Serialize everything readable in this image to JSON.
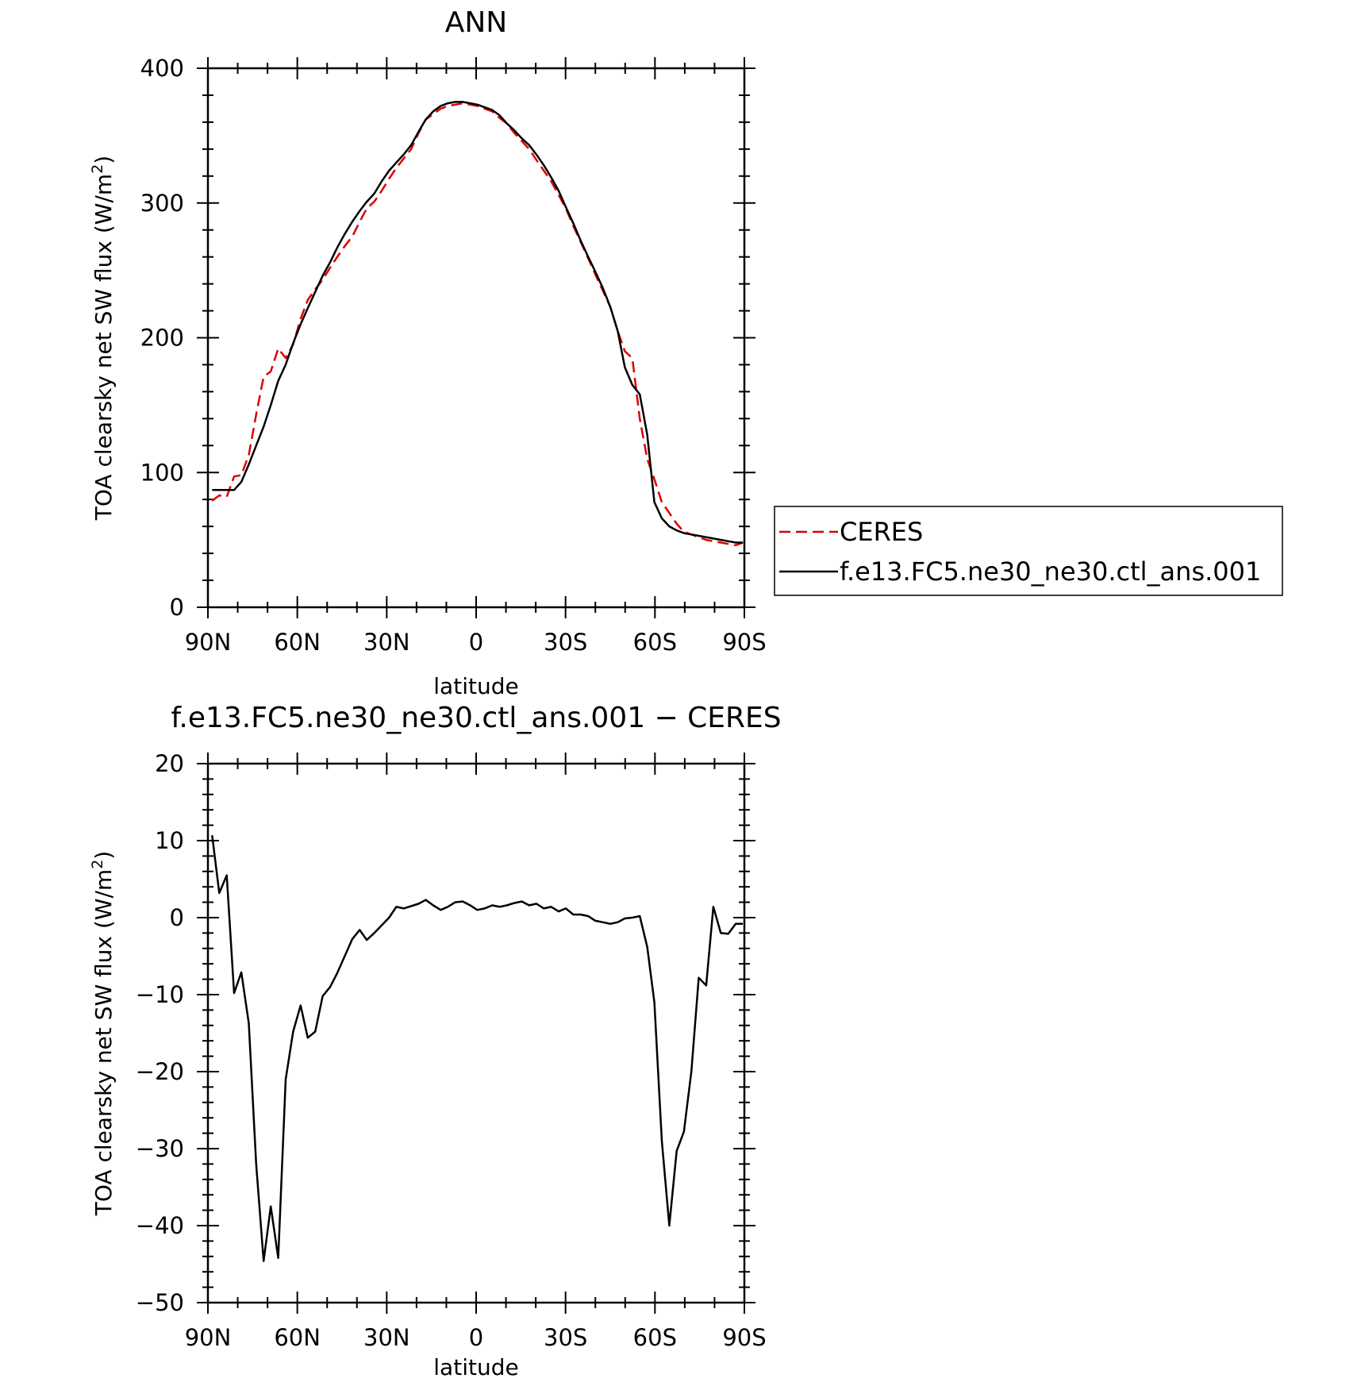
{
  "chart_data": [
    {
      "type": "line",
      "title": "ANN",
      "xlabel": "latitude",
      "ylabel": "TOA clearsky net SW flux (W/m",
      "ylabel_sup": "2",
      "ylabel_tail": ")",
      "xlim": [
        90,
        -90
      ],
      "ylim": [
        0,
        400
      ],
      "xticks": [
        90,
        60,
        30,
        0,
        -30,
        -60,
        -90
      ],
      "xtick_labels": [
        "90N",
        "60N",
        "30N",
        "0",
        "30S",
        "60S",
        "90S"
      ],
      "yticks": [
        0,
        100,
        200,
        300,
        400
      ],
      "ytick_labels": [
        "0",
        "100",
        "200",
        "300",
        "400"
      ],
      "grid": false,
      "legend": "right",
      "series": [
        {
          "name": "CERES",
          "color": "#dd0000",
          "dash": "dashed",
          "x": [
            88.6,
            86.2,
            83.7,
            81.2,
            78.8,
            76.3,
            73.8,
            71.3,
            68.9,
            66.4,
            63.9,
            61.4,
            58.9,
            56.5,
            54.0,
            51.5,
            49.0,
            46.6,
            44.1,
            41.6,
            39.1,
            36.7,
            34.2,
            31.7,
            29.2,
            26.8,
            24.3,
            21.8,
            19.3,
            16.9,
            14.4,
            11.9,
            9.5,
            7.0,
            4.5,
            2.0,
            -0.4,
            -2.9,
            -5.4,
            -7.9,
            -10.3,
            -12.8,
            -15.3,
            -17.8,
            -20.2,
            -22.7,
            -25.2,
            -27.7,
            -30.1,
            -32.6,
            -35.1,
            -37.6,
            -40.0,
            -42.5,
            -45.0,
            -47.5,
            -49.9,
            -52.4,
            -54.9,
            -57.4,
            -59.8,
            -62.3,
            -64.8,
            -67.3,
            -69.7,
            -72.2,
            -74.7,
            -77.2,
            -79.6,
            -82.1,
            -84.6,
            -87.1,
            -89.5
          ],
          "values": [
            79,
            83,
            82,
            97,
            98,
            113,
            143,
            171,
            175,
            192,
            185,
            195,
            214,
            228,
            236,
            243,
            252,
            260,
            268,
            275,
            286,
            296,
            301,
            309,
            318,
            326,
            333,
            340,
            352,
            362,
            366,
            370,
            372,
            373,
            374,
            373,
            372,
            370,
            368,
            363,
            359,
            352,
            346,
            340,
            332,
            324,
            316,
            306,
            296,
            283,
            271,
            259,
            247,
            235,
            223,
            205,
            190,
            185,
            140,
            110,
            95,
            78,
            70,
            62,
            56,
            54,
            52,
            50,
            49,
            48,
            47,
            46,
            48
          ]
        },
        {
          "name": "f.e13.FC5.ne30_ne30.ctl_ans.001",
          "color": "#000000",
          "dash": "solid",
          "x": [
            88.6,
            86.2,
            83.7,
            81.2,
            78.8,
            76.3,
            73.8,
            71.3,
            68.9,
            66.4,
            63.9,
            61.4,
            58.9,
            56.5,
            54.0,
            51.5,
            49.0,
            46.6,
            44.1,
            41.6,
            39.1,
            36.7,
            34.2,
            31.7,
            29.2,
            26.8,
            24.3,
            21.8,
            19.3,
            16.9,
            14.4,
            11.9,
            9.5,
            7.0,
            4.5,
            2.0,
            -0.4,
            -2.9,
            -5.4,
            -7.9,
            -10.3,
            -12.8,
            -15.3,
            -17.8,
            -20.2,
            -22.7,
            -25.2,
            -27.7,
            -30.1,
            -32.6,
            -35.1,
            -37.6,
            -40.0,
            -42.5,
            -45.0,
            -47.5,
            -49.9,
            -52.4,
            -54.9,
            -57.4,
            -59.8,
            -62.3,
            -64.8,
            -67.3,
            -69.7,
            -72.2,
            -74.7,
            -77.2,
            -79.6,
            -82.1,
            -84.6,
            -87.1,
            -89.5
          ],
          "values": [
            87,
            87,
            87,
            87,
            93,
            106,
            120,
            134,
            150,
            168,
            180,
            196,
            210,
            222,
            234,
            246,
            256,
            267,
            277,
            286,
            294,
            301,
            307,
            316,
            324,
            330,
            336,
            343,
            353,
            362,
            368,
            372,
            374,
            375,
            375,
            374,
            373,
            371,
            369,
            365,
            359,
            354,
            348,
            343,
            336,
            328,
            319,
            309,
            297,
            285,
            272,
            260,
            249,
            237,
            223,
            205,
            178,
            165,
            158,
            128,
            78,
            66,
            60,
            57,
            55,
            54,
            53,
            52,
            51,
            50,
            49,
            48,
            48
          ]
        }
      ]
    },
    {
      "type": "line",
      "title": "f.e13.FC5.ne30_ne30.ctl_ans.001 − CERES",
      "xlabel": "latitude",
      "ylabel": "TOA clearsky net SW flux (W/m",
      "ylabel_sup": "2",
      "ylabel_tail": ")",
      "xlim": [
        90,
        -90
      ],
      "ylim": [
        -50,
        20
      ],
      "xticks": [
        90,
        60,
        30,
        0,
        -30,
        -60,
        -90
      ],
      "xtick_labels": [
        "90N",
        "60N",
        "30N",
        "0",
        "30S",
        "60S",
        "90S"
      ],
      "yticks": [
        -50,
        -40,
        -30,
        -20,
        -10,
        0,
        10,
        20
      ],
      "ytick_labels": [
        "−50",
        "−40",
        "−30",
        "−20",
        "−10",
        "0",
        "10",
        "20"
      ],
      "grid": false,
      "series": [
        {
          "color": "#000000",
          "dash": "solid",
          "x": [
            88.6,
            86.2,
            83.7,
            81.2,
            78.8,
            76.3,
            73.8,
            71.3,
            68.9,
            66.4,
            63.9,
            61.4,
            58.9,
            56.5,
            54.0,
            51.5,
            49.0,
            46.6,
            44.1,
            41.6,
            39.1,
            36.7,
            34.2,
            31.7,
            29.2,
            26.8,
            24.3,
            21.8,
            19.3,
            16.9,
            14.4,
            11.9,
            9.5,
            7.0,
            4.5,
            2.0,
            -0.4,
            -2.9,
            -5.4,
            -7.9,
            -10.3,
            -12.8,
            -15.3,
            -17.8,
            -20.2,
            -22.7,
            -25.2,
            -27.7,
            -30.1,
            -32.6,
            -35.1,
            -37.6,
            -40.0,
            -42.5,
            -45.0,
            -47.5,
            -49.9,
            -52.4,
            -54.9,
            -57.4,
            -59.8,
            -62.3,
            -64.8,
            -67.3,
            -69.7,
            -72.2,
            -74.7,
            -77.2,
            -79.6,
            -82.1,
            -84.6,
            -87.1,
            -89.5
          ],
          "values": [
            10.7,
            3.2,
            5.5,
            -9.8,
            -7.1,
            -13.7,
            -32.0,
            -44.6,
            -37.5,
            -44.2,
            -21.0,
            -14.8,
            -11.4,
            -15.6,
            -14.8,
            -10.2,
            -9.0,
            -7.2,
            -5.0,
            -2.8,
            -1.6,
            -2.9,
            -2.0,
            -1.0,
            0.0,
            1.4,
            1.2,
            1.5,
            1.8,
            2.3,
            1.6,
            1.0,
            1.4,
            2.0,
            2.1,
            1.6,
            1.0,
            1.2,
            1.6,
            1.4,
            1.6,
            1.9,
            2.1,
            1.6,
            1.8,
            1.2,
            1.4,
            0.8,
            1.2,
            0.4,
            0.4,
            0.2,
            -0.4,
            -0.6,
            -0.8,
            -0.6,
            -0.1,
            0.0,
            0.2,
            -3.8,
            -11.0,
            -29.0,
            -40.0,
            -30.3,
            -27.8,
            -20.0,
            -7.8,
            -8.8,
            1.4,
            -2.0,
            -2.1,
            -0.8,
            -0.8
          ]
        }
      ]
    }
  ]
}
